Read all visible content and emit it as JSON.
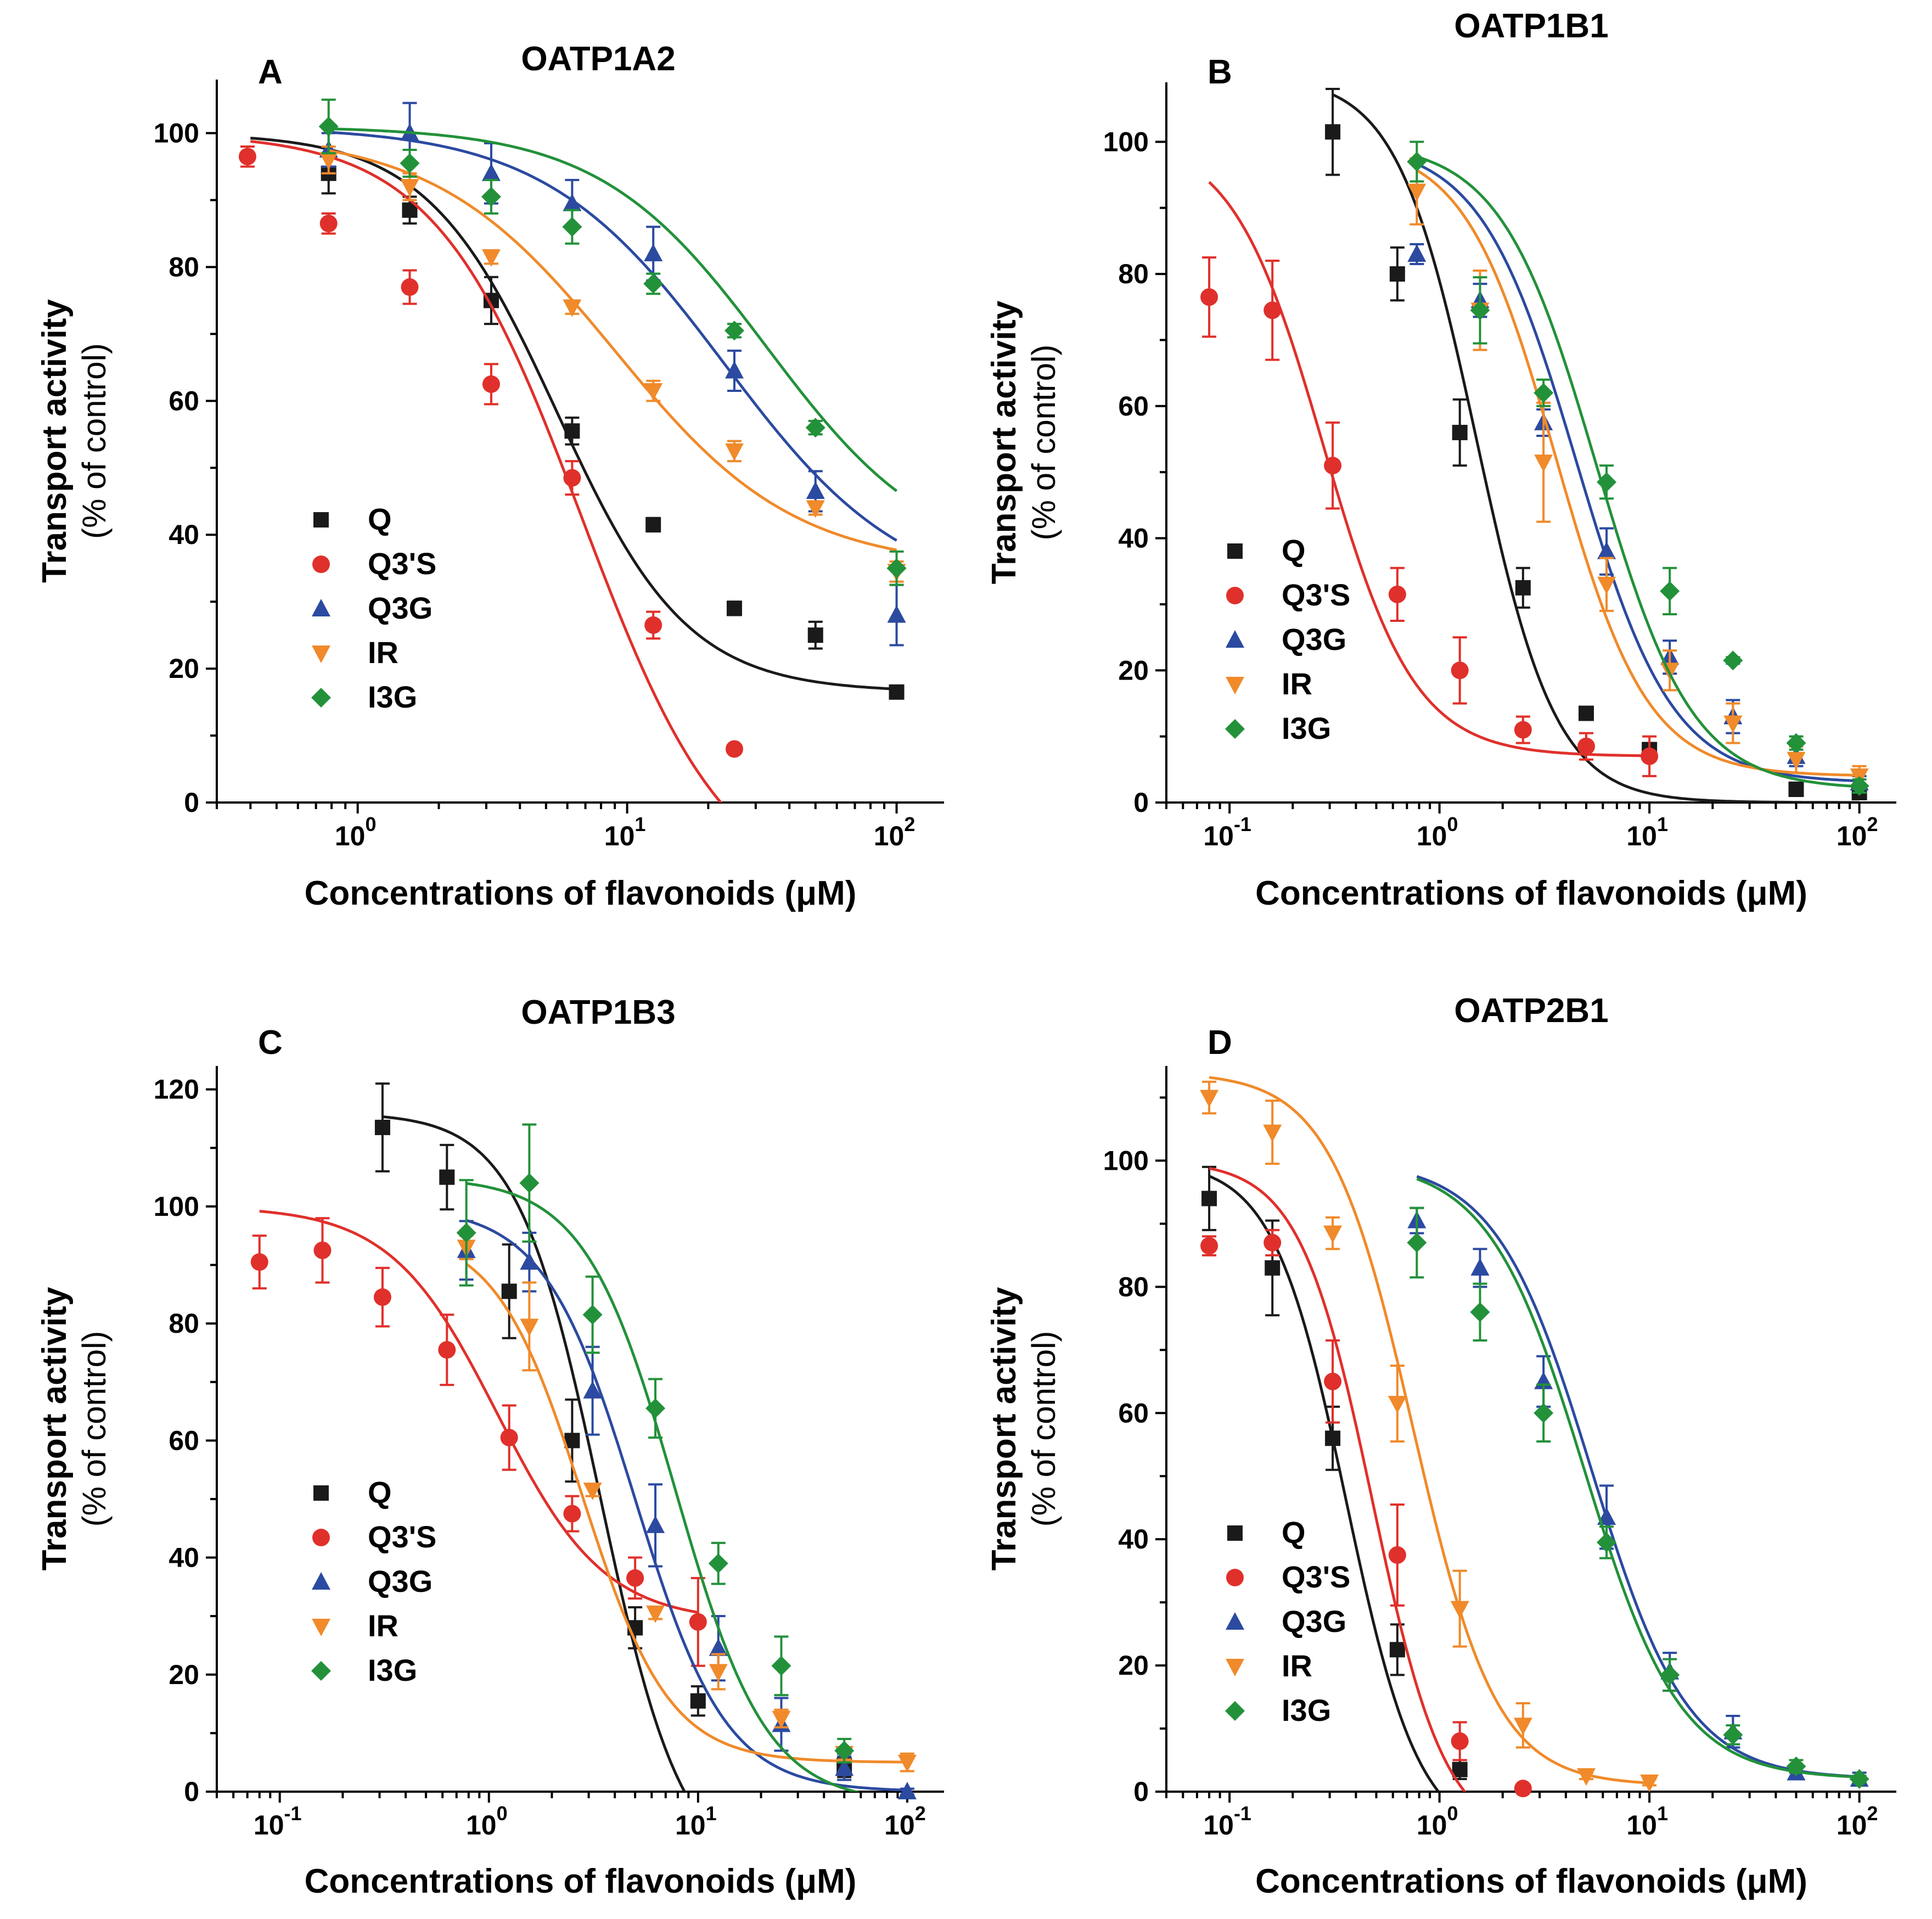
{
  "x_label": "Concentrations of flavonoids (μM)",
  "y_label_line1": "Transport activity",
  "y_label_line2": "(% of control)",
  "series_colors": {
    "Q": "#1a1a1a",
    "Q3'S": "#e0302b",
    "Q3G": "#2b4aa0",
    "IR": "#f08a2a",
    "I3G": "#23913a"
  },
  "marker_shapes": {
    "Q": "square",
    "Q3'S": "circle",
    "Q3G": "triangle-up",
    "IR": "triangle-down",
    "I3G": "diamond"
  },
  "chart_data": [
    {
      "panel": "A",
      "title": "OATP1A2",
      "type": "scatter",
      "xscale": "log",
      "xlim": [
        0.3,
        150
      ],
      "ylim": [
        0,
        108
      ],
      "yticks": [
        0,
        20,
        40,
        60,
        80,
        100
      ],
      "xticks": [
        1,
        10,
        100
      ],
      "xtick_labels": [
        {
          "base": "10",
          "exp": "0"
        },
        {
          "base": "10",
          "exp": "1"
        },
        {
          "base": "10",
          "exp": "2"
        }
      ],
      "legend": "lower-left",
      "series": [
        {
          "name": "Q",
          "x": [
            0.78,
            1.56,
            3.13,
            6.25,
            12.5,
            25,
            50,
            100
          ],
          "y": [
            94,
            88.5,
            75,
            55.5,
            41.5,
            29,
            25,
            16.5
          ],
          "err": [
            3,
            2,
            3.5,
            2,
            1,
            1,
            2,
            0.5
          ],
          "fit": {
            "top": 100,
            "bottom": 16.5,
            "ic50": 5.5,
            "hill": 1.8,
            "xmin": 0.4,
            "xmax": 100
          }
        },
        {
          "name": "Q3'S",
          "x": [
            0.39,
            0.78,
            1.56,
            3.13,
            6.25,
            12.5,
            25
          ],
          "y": [
            96.5,
            86.5,
            77,
            62.5,
            48.5,
            26.5,
            8
          ],
          "err": [
            1.5,
            1.5,
            2.5,
            3,
            2.5,
            2,
            0.5
          ],
          "fit": {
            "top": 100,
            "bottom": -15,
            "ic50": 6.8,
            "hill": 1.6,
            "xmin": 0.4,
            "xmax": 30
          }
        },
        {
          "name": "Q3G",
          "x": [
            0.78,
            1.56,
            3.13,
            6.25,
            12.5,
            25,
            50,
            100
          ],
          "y": [
            97.5,
            100,
            94,
            89.5,
            82,
            64.5,
            46.5,
            28
          ],
          "err": [
            2.5,
            4.5,
            4.5,
            3.5,
            4,
            3,
            3,
            4.5
          ],
          "fit": {
            "top": 101,
            "bottom": 30,
            "ic50": 23,
            "hill": 1.3,
            "xmin": 0.78,
            "xmax": 100
          }
        },
        {
          "name": "IR",
          "x": [
            0.78,
            1.56,
            3.13,
            6.25,
            12.5,
            25,
            50,
            100
          ],
          "y": [
            96,
            92,
            81.5,
            74,
            61.5,
            52.5,
            44,
            34.5
          ],
          "err": [
            2,
            2,
            1,
            1,
            1.5,
            1.5,
            1,
            1.5
          ],
          "fit": {
            "top": 100,
            "bottom": 35,
            "ic50": 9,
            "hill": 1.3,
            "xmin": 0.78,
            "xmax": 100
          }
        },
        {
          "name": "I3G",
          "x": [
            0.78,
            1.56,
            3.13,
            6.25,
            12.5,
            25,
            50,
            100
          ],
          "y": [
            101,
            95.5,
            90.5,
            86,
            77.5,
            70.5,
            56,
            35
          ],
          "err": [
            4,
            2,
            2.5,
            2.5,
            1.5,
            1,
            1,
            2.5
          ],
          "fit": {
            "top": 101,
            "bottom": 35,
            "ic50": 33,
            "hill": 1.4,
            "xmin": 0.78,
            "xmax": 100
          }
        }
      ]
    },
    {
      "panel": "B",
      "title": "OATP1B1",
      "type": "scatter",
      "xscale": "log",
      "xlim": [
        0.05,
        150
      ],
      "ylim": [
        0,
        109
      ],
      "yticks": [
        0,
        20,
        40,
        60,
        80,
        100
      ],
      "xticks": [
        0.1,
        1,
        10,
        100
      ],
      "xtick_labels": [
        {
          "base": "10",
          "exp": "-1"
        },
        {
          "base": "10",
          "exp": "0"
        },
        {
          "base": "10",
          "exp": "1"
        },
        {
          "base": "10",
          "exp": "2"
        }
      ],
      "legend": "lower-left",
      "series": [
        {
          "name": "Q",
          "x": [
            0.31,
            0.63,
            1.25,
            2.5,
            5,
            10,
            50,
            100
          ],
          "y": [
            101.5,
            80,
            56,
            32.5,
            13.5,
            8,
            2,
            1.5
          ],
          "err": [
            6.5,
            4,
            5,
            3,
            1,
            1,
            1,
            0.5
          ],
          "fit": {
            "top": 110,
            "bottom": 0,
            "ic50": 1.5,
            "hill": 2.3,
            "xmin": 0.31,
            "xmax": 100
          }
        },
        {
          "name": "Q3'S",
          "x": [
            0.08,
            0.16,
            0.31,
            0.63,
            1.25,
            2.5,
            5,
            10
          ],
          "y": [
            76.5,
            74.5,
            51,
            31.5,
            20,
            11,
            8.5,
            7
          ],
          "err": [
            6,
            7.5,
            6.5,
            4,
            5,
            2,
            2,
            3
          ],
          "fit": {
            "top": 101,
            "bottom": 7,
            "ic50": 0.28,
            "hill": 2.0,
            "xmin": 0.08,
            "xmax": 10
          }
        },
        {
          "name": "Q3G",
          "x": [
            0.78,
            1.56,
            3.13,
            6.25,
            12.5,
            25,
            50,
            100
          ],
          "y": [
            83,
            76,
            57.5,
            38,
            22,
            13,
            7,
            3
          ],
          "err": [
            1.5,
            2.5,
            2,
            3.5,
            2.5,
            2.5,
            1.5,
            1
          ],
          "fit": {
            "top": 100,
            "bottom": 3,
            "ic50": 4.5,
            "hill": 1.9,
            "xmin": 0.78,
            "xmax": 100
          }
        },
        {
          "name": "IR",
          "x": [
            0.78,
            1.56,
            3.13,
            6.25,
            12.5,
            25,
            50,
            100
          ],
          "y": [
            92.5,
            74.5,
            51.5,
            33,
            20,
            12,
            6.5,
            4
          ],
          "err": [
            5,
            6,
            9,
            4,
            3,
            3,
            2,
            1.5
          ],
          "fit": {
            "top": 100,
            "bottom": 4,
            "ic50": 3.6,
            "hill": 2.0,
            "xmin": 0.78,
            "xmax": 100
          }
        },
        {
          "name": "I3G",
          "x": [
            0.78,
            1.56,
            3.13,
            6.25,
            12.5,
            25,
            50,
            100
          ],
          "y": [
            97,
            74.5,
            62,
            48.5,
            32,
            21.5,
            9,
            2.5
          ],
          "err": [
            3,
            5,
            2,
            2.5,
            3.5,
            0.5,
            1,
            1
          ],
          "fit": {
            "top": 100,
            "bottom": 2,
            "ic50": 5.6,
            "hill": 1.9,
            "xmin": 0.78,
            "xmax": 100
          }
        }
      ]
    },
    {
      "panel": "C",
      "title": "OATP1B3",
      "type": "scatter",
      "xscale": "log",
      "xlim": [
        0.05,
        150
      ],
      "ylim": [
        0,
        124
      ],
      "yticks": [
        0,
        20,
        40,
        60,
        80,
        100,
        120
      ],
      "xticks": [
        0.1,
        1,
        10,
        100
      ],
      "xtick_labels": [
        {
          "base": "10",
          "exp": "-1"
        },
        {
          "base": "10",
          "exp": "0"
        },
        {
          "base": "10",
          "exp": "1"
        },
        {
          "base": "10",
          "exp": "2"
        }
      ],
      "legend": "lower-left",
      "series": [
        {
          "name": "Q",
          "x": [
            0.31,
            0.63,
            1.25,
            2.5,
            5,
            10,
            50
          ],
          "y": [
            113.5,
            105,
            85.5,
            60,
            28,
            15.5,
            4.5
          ],
          "err": [
            7.5,
            5.5,
            8,
            7,
            3.5,
            2.5,
            2
          ],
          "fit": {
            "top": 116,
            "bottom": -15,
            "ic50": 3.4,
            "hill": 2.2,
            "xmin": 0.31,
            "xmax": 13
          }
        },
        {
          "name": "Q3'S",
          "x": [
            0.08,
            0.16,
            0.31,
            0.63,
            1.25,
            2.5,
            5,
            10
          ],
          "y": [
            90.5,
            92.5,
            84.5,
            75.5,
            60.5,
            47.5,
            36.5,
            29
          ],
          "err": [
            4.5,
            5.5,
            5,
            6,
            5.5,
            3,
            3.5,
            7.5
          ],
          "fit": {
            "top": 100,
            "bottom": 29,
            "ic50": 1.1,
            "hill": 1.7,
            "xmin": 0.08,
            "xmax": 10
          }
        },
        {
          "name": "Q3G",
          "x": [
            0.78,
            1.56,
            3.13,
            6.25,
            12.5,
            25,
            50,
            100
          ],
          "y": [
            92.5,
            90.5,
            68.5,
            45.5,
            24.5,
            11.5,
            4,
            0
          ],
          "err": [
            5,
            5,
            7.5,
            7,
            5.5,
            4.5,
            2,
            0.5
          ],
          "fit": {
            "top": 100,
            "bottom": 0,
            "ic50": 5.0,
            "hill": 2.0,
            "xmin": 0.78,
            "xmax": 100
          }
        },
        {
          "name": "IR",
          "x": [
            0.78,
            1.56,
            3.13,
            6.25,
            12.5,
            25,
            50,
            100
          ],
          "y": [
            93,
            79.5,
            51.5,
            30.5,
            20.5,
            12.5,
            6.5,
            5
          ],
          "err": [
            2,
            7.5,
            1,
            1,
            3,
            1.5,
            1,
            1.5
          ],
          "fit": {
            "top": 96,
            "bottom": 5,
            "ic50": 2.8,
            "hill": 2.1,
            "xmin": 0.78,
            "xmax": 100
          }
        },
        {
          "name": "I3G",
          "x": [
            0.78,
            1.56,
            3.13,
            6.25,
            12.5,
            25,
            50
          ],
          "y": [
            95.5,
            104,
            81.5,
            65.5,
            39,
            21.5,
            7
          ],
          "err": [
            9,
            10,
            6.5,
            5,
            3.5,
            5,
            2
          ],
          "fit": {
            "top": 105,
            "bottom": -2,
            "ic50": 7.8,
            "hill": 2.0,
            "xmin": 0.78,
            "xmax": 100
          }
        }
      ]
    },
    {
      "panel": "D",
      "title": "OATP2B1",
      "type": "scatter",
      "xscale": "log",
      "xlim": [
        0.05,
        150
      ],
      "ylim": [
        0,
        115
      ],
      "yticks": [
        0,
        20,
        40,
        60,
        80,
        100
      ],
      "xticks": [
        0.1,
        1,
        10,
        100
      ],
      "xtick_labels": [
        {
          "base": "10",
          "exp": "-1"
        },
        {
          "base": "10",
          "exp": "0"
        },
        {
          "base": "10",
          "exp": "1"
        },
        {
          "base": "10",
          "exp": "2"
        }
      ],
      "legend": "lower-left",
      "series": [
        {
          "name": "Q",
          "x": [
            0.08,
            0.16,
            0.31,
            0.63,
            1.25
          ],
          "y": [
            94,
            83,
            56,
            22.5,
            3.5
          ],
          "err": [
            5,
            7.5,
            5,
            4,
            1.5
          ],
          "fit": {
            "top": 100,
            "bottom": -8,
            "ic50": 0.36,
            "hill": 2.5,
            "xmin": 0.08,
            "xmax": 2.0
          }
        },
        {
          "name": "Q3'S",
          "x": [
            0.08,
            0.16,
            0.31,
            0.63,
            1.25,
            2.5
          ],
          "y": [
            86.5,
            87,
            65,
            37.5,
            8,
            0.5
          ],
          "err": [
            1.5,
            2,
            6.5,
            8,
            3,
            0.5
          ],
          "fit": {
            "top": 100,
            "bottom": -8,
            "ic50": 0.48,
            "hill": 2.5,
            "xmin": 0.08,
            "xmax": 2.2
          }
        },
        {
          "name": "Q3G",
          "x": [
            0.78,
            1.56,
            3.13,
            6.25,
            12.5,
            25,
            50,
            100
          ],
          "y": [
            90.5,
            83,
            65,
            43.5,
            19,
            9.5,
            3,
            2
          ],
          "err": [
            2,
            3,
            4,
            5,
            3,
            2.5,
            1,
            1
          ],
          "fit": {
            "top": 100,
            "bottom": 2,
            "ic50": 5.3,
            "hill": 1.9,
            "xmin": 0.78,
            "xmax": 100
          }
        },
        {
          "name": "IR",
          "x": [
            0.08,
            0.16,
            0.31,
            0.63,
            1.25,
            2.5,
            5,
            10
          ],
          "y": [
            110,
            104.5,
            88.5,
            61.5,
            29,
            10.5,
            2.5,
            1.5
          ],
          "err": [
            2.5,
            5,
            2.5,
            6,
            6,
            3.5,
            0.5,
            0.5
          ],
          "fit": {
            "top": 114,
            "bottom": 1,
            "ic50": 0.75,
            "hill": 2.2,
            "xmin": 0.08,
            "xmax": 10
          }
        },
        {
          "name": "I3G",
          "x": [
            0.78,
            1.56,
            3.13,
            6.25,
            12.5,
            25,
            50,
            100
          ],
          "y": [
            87,
            76,
            60,
            39.5,
            18.5,
            9,
            4,
            2
          ],
          "err": [
            5.5,
            4.5,
            4.5,
            2.5,
            2.5,
            1.5,
            1,
            0.5
          ],
          "fit": {
            "top": 100,
            "bottom": 2,
            "ic50": 4.9,
            "hill": 1.9,
            "xmin": 0.78,
            "xmax": 100
          }
        }
      ]
    }
  ]
}
